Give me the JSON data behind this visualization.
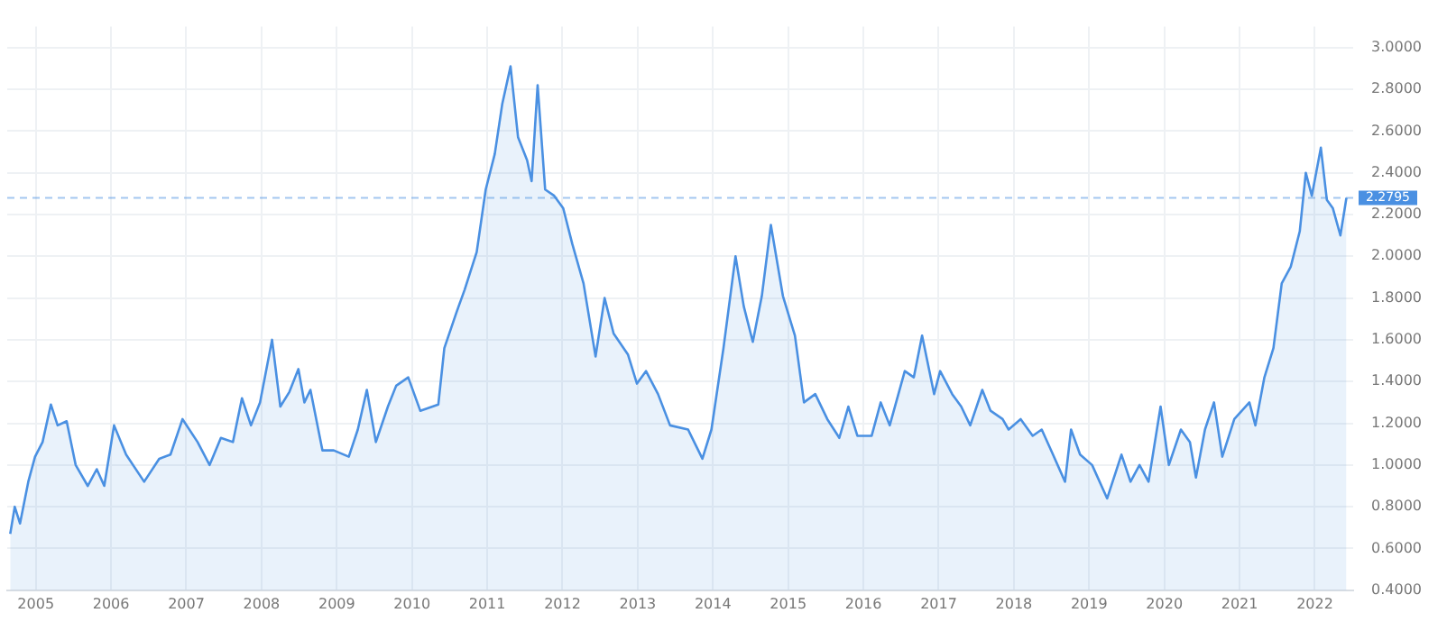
{
  "chart_data": {
    "type": "area",
    "x": [
      2004.66,
      2004.72,
      2004.79,
      2004.9,
      2004.99,
      2005.09,
      2005.2,
      2005.29,
      2005.41,
      2005.53,
      2005.69,
      2005.81,
      2005.91,
      2006.04,
      2006.2,
      2006.44,
      2006.64,
      2006.79,
      2006.95,
      2007.15,
      2007.31,
      2007.46,
      2007.62,
      2007.74,
      2007.86,
      2007.98,
      2008.14,
      2008.25,
      2008.37,
      2008.49,
      2008.57,
      2008.65,
      2008.81,
      2008.96,
      2009.16,
      2009.28,
      2009.4,
      2009.52,
      2009.68,
      2009.79,
      2009.95,
      2010.11,
      2010.35,
      2010.43,
      2010.59,
      2010.7,
      2010.86,
      2010.98,
      2011.1,
      2011.2,
      2011.31,
      2011.41,
      2011.53,
      2011.59,
      2011.67,
      2011.77,
      2011.89,
      2012.01,
      2012.13,
      2012.28,
      2012.44,
      2012.56,
      2012.68,
      2012.87,
      2012.99,
      2013.11,
      2013.27,
      2013.43,
      2013.67,
      2013.86,
      2013.98,
      2014.14,
      2014.3,
      2014.41,
      2014.53,
      2014.65,
      2014.77,
      2014.93,
      2015.09,
      2015.21,
      2015.36,
      2015.52,
      2015.68,
      2015.8,
      2015.92,
      2016.11,
      2016.23,
      2016.35,
      2016.55,
      2016.67,
      2016.78,
      2016.94,
      2017.02,
      2017.18,
      2017.3,
      2017.42,
      2017.58,
      2017.69,
      2017.85,
      2017.93,
      2018.09,
      2018.25,
      2018.37,
      2018.52,
      2018.68,
      2018.76,
      2018.88,
      2019.04,
      2019.24,
      2019.43,
      2019.55,
      2019.67,
      2019.79,
      2019.95,
      2020.06,
      2020.22,
      2020.34,
      2020.42,
      2020.54,
      2020.66,
      2020.77,
      2020.93,
      2021.13,
      2021.21,
      2021.33,
      2021.45,
      2021.56,
      2021.68,
      2021.8,
      2021.88,
      2021.96,
      2022.08,
      2022.16,
      2022.24,
      2022.34,
      2022.42
    ],
    "series": [
      {
        "color": "#4a90e2",
        "values": [
          0.67,
          0.8,
          0.72,
          0.92,
          1.04,
          1.11,
          1.29,
          1.19,
          1.21,
          1.0,
          0.9,
          0.98,
          0.9,
          1.19,
          1.05,
          0.92,
          1.03,
          1.05,
          1.22,
          1.11,
          1.0,
          1.13,
          1.11,
          1.32,
          1.19,
          1.3,
          1.6,
          1.28,
          1.35,
          1.46,
          1.3,
          1.36,
          1.07,
          1.07,
          1.04,
          1.17,
          1.36,
          1.11,
          1.28,
          1.38,
          1.42,
          1.26,
          1.29,
          1.56,
          1.73,
          1.84,
          2.02,
          2.32,
          2.49,
          2.73,
          2.91,
          2.57,
          2.46,
          2.36,
          2.82,
          2.32,
          2.29,
          2.23,
          2.06,
          1.87,
          1.52,
          1.8,
          1.63,
          1.53,
          1.39,
          1.45,
          1.34,
          1.19,
          1.17,
          1.03,
          1.17,
          1.56,
          2.0,
          1.76,
          1.59,
          1.81,
          2.15,
          1.81,
          1.62,
          1.3,
          1.34,
          1.22,
          1.13,
          1.28,
          1.14,
          1.14,
          1.3,
          1.19,
          1.45,
          1.42,
          1.62,
          1.34,
          1.45,
          1.34,
          1.28,
          1.19,
          1.36,
          1.26,
          1.22,
          1.17,
          1.22,
          1.14,
          1.17,
          1.05,
          0.92,
          1.17,
          1.05,
          1.0,
          0.84,
          1.05,
          0.92,
          1.0,
          0.92,
          1.28,
          1.0,
          1.17,
          1.11,
          0.94,
          1.17,
          1.3,
          1.04,
          1.22,
          1.3,
          1.19,
          1.42,
          1.56,
          1.87,
          1.95,
          2.12,
          2.4,
          2.29,
          2.52,
          2.27,
          2.23,
          2.1,
          2.28
        ]
      }
    ],
    "xlim": [
      2004.62,
      2022.51
    ],
    "xticks": [
      2005,
      2006,
      2007,
      2008,
      2009,
      2010,
      2011,
      2012,
      2013,
      2014,
      2015,
      2016,
      2017,
      2018,
      2019,
      2020,
      2021,
      2022
    ],
    "ylim": [
      0.4,
      3.1
    ],
    "yticks": [
      {
        "value": 0.4,
        "label": "0.4000"
      },
      {
        "value": 0.6,
        "label": "0.6000"
      },
      {
        "value": 0.8,
        "label": "0.8000"
      },
      {
        "value": 1.0,
        "label": "1.0000"
      },
      {
        "value": 1.2,
        "label": "1.2000"
      },
      {
        "value": 1.4,
        "label": "1.4000"
      },
      {
        "value": 1.6,
        "label": "1.6000"
      },
      {
        "value": 1.8,
        "label": "1.8000"
      },
      {
        "value": 2.0,
        "label": "2.0000"
      },
      {
        "value": 2.2,
        "label": "2.2000"
      },
      {
        "value": 2.4,
        "label": "2.4000"
      },
      {
        "value": 2.6,
        "label": "2.6000"
      },
      {
        "value": 2.8,
        "label": "2.8000"
      },
      {
        "value": 3.0,
        "label": "3.0000"
      }
    ],
    "ref_lines": [
      {
        "axis": "y",
        "value": 2.2795,
        "label": "2.2795",
        "color": "#4a90e2",
        "line_style": "dashed"
      }
    ],
    "grid": true,
    "legend": false,
    "marker": "none",
    "line_style": "solid"
  }
}
